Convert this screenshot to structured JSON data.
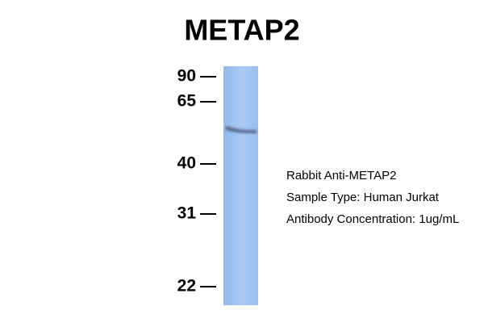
{
  "header": {
    "title": "METAP2"
  },
  "ladder": {
    "labels": [
      "90",
      "65",
      "40",
      "31",
      "22"
    ]
  },
  "annotation": {
    "lines": [
      "Rabbit Anti-METAP2",
      "Sample Type: Human Jurkat",
      "Antibody Concentration: 1ug/mL"
    ]
  }
}
